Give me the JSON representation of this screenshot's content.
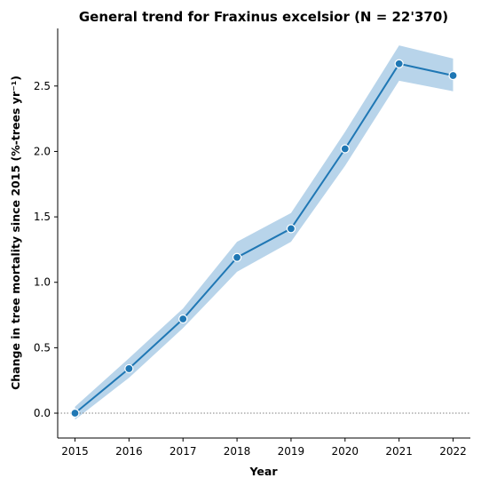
{
  "chart_data": {
    "type": "line",
    "title": "General trend for Fraxinus excelsior  (N = 22'370)",
    "xlabel": "Year",
    "ylabel": "Change in tree mortality since 2015 (%-trees yr⁻¹)",
    "x": [
      2015,
      2016,
      2017,
      2018,
      2019,
      2020,
      2021,
      2022
    ],
    "series": [
      {
        "values": [
          0.0,
          0.34,
          0.72,
          1.19,
          1.41,
          2.02,
          2.67,
          2.58
        ],
        "ci_lower": [
          -0.05,
          0.27,
          0.65,
          1.08,
          1.31,
          1.89,
          2.54,
          2.46
        ],
        "ci_upper": [
          0.05,
          0.42,
          0.8,
          1.31,
          1.53,
          2.15,
          2.81,
          2.71
        ],
        "color": "#1f77b4",
        "band_color": "#b8d4ea"
      }
    ],
    "xlim": [
      2014.68,
      2022.32
    ],
    "ylim": [
      -0.19,
      2.94
    ],
    "yticks": [
      0.0,
      0.5,
      1.0,
      1.5,
      2.0,
      2.5
    ],
    "ytick_labels": [
      "0.0",
      "0.5",
      "1.0",
      "1.5",
      "2.0",
      "2.5"
    ],
    "xtick_labels": [
      "2015",
      "2016",
      "2017",
      "2018",
      "2019",
      "2020",
      "2021",
      "2022"
    ],
    "reference_line": {
      "y": 0.0,
      "style": "dotted",
      "color": "#808080"
    },
    "grid": false,
    "legend": "none"
  }
}
